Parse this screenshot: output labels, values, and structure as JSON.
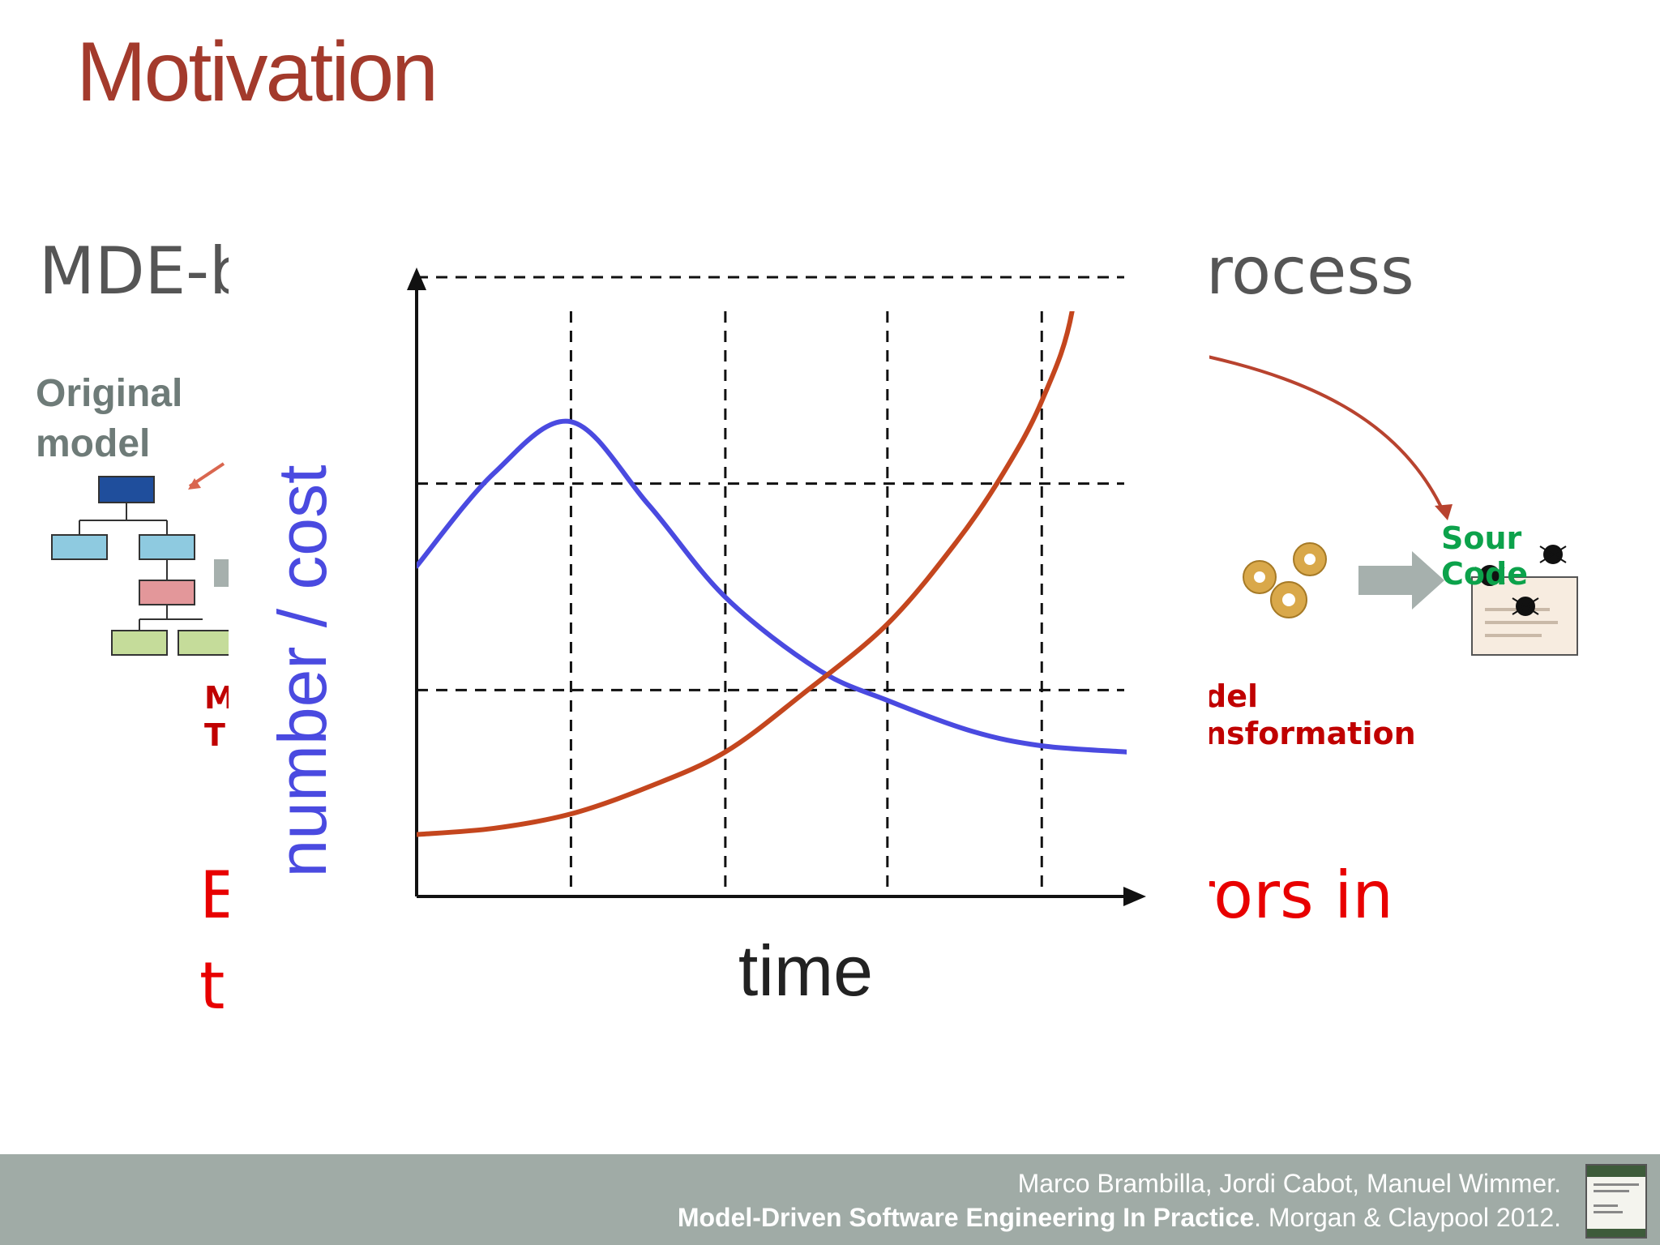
{
  "slide": {
    "title": "Motivation",
    "subtitle_left": "MDE-b",
    "subtitle_right": "rocess",
    "original_label_line1": "Original",
    "original_label_line2": "model",
    "transform_left_line1": "M",
    "transform_left_line2": "T",
    "transform_right_line1": "del",
    "transform_right_line2": "nsformation",
    "source_label": "Sour Code",
    "bottom_left_line1": "E",
    "bottom_left_line2": "t",
    "bottom_right": "rors in"
  },
  "footer": {
    "authors": "Marco Brambilla, Jordi Cabot, Manuel Wimmer.",
    "book_title": "Model-Driven Software Engineering In Practice",
    "publisher": ". Morgan & Claypool 2012."
  },
  "colors": {
    "title": "#a33a2c",
    "blue_series": "#4a4ae0",
    "orange_series": "#c4461e",
    "footer_bar": "#a0aba6"
  },
  "chart_data": {
    "type": "line",
    "xlabel": "time",
    "ylabel": "number / cost",
    "xlim": [
      0,
      4.6
    ],
    "ylim": [
      0,
      3.0
    ],
    "grid": true,
    "grid_style": "dashed",
    "x_gridlines": [
      1.0,
      2.0,
      3.05,
      4.05
    ],
    "y_gridlines": [
      1.0,
      2.0,
      3.0
    ],
    "series": [
      {
        "color": "#4a4ae0",
        "points": [
          [
            0,
            1.6
          ],
          [
            0.5,
            2.05
          ],
          [
            1.0,
            2.3
          ],
          [
            1.5,
            1.9
          ],
          [
            2.0,
            1.45
          ],
          [
            2.6,
            1.1
          ],
          [
            3.05,
            0.95
          ],
          [
            3.6,
            0.8
          ],
          [
            4.05,
            0.73
          ],
          [
            4.6,
            0.7
          ]
        ]
      },
      {
        "color": "#c4461e",
        "points": [
          [
            0,
            0.3
          ],
          [
            0.5,
            0.33
          ],
          [
            1.0,
            0.4
          ],
          [
            1.5,
            0.53
          ],
          [
            2.0,
            0.7
          ],
          [
            2.5,
            0.98
          ],
          [
            3.05,
            1.32
          ],
          [
            3.5,
            1.72
          ],
          [
            3.8,
            2.05
          ],
          [
            4.05,
            2.4
          ],
          [
            4.25,
            2.85
          ],
          [
            4.33,
            3.6
          ]
        ]
      }
    ]
  }
}
